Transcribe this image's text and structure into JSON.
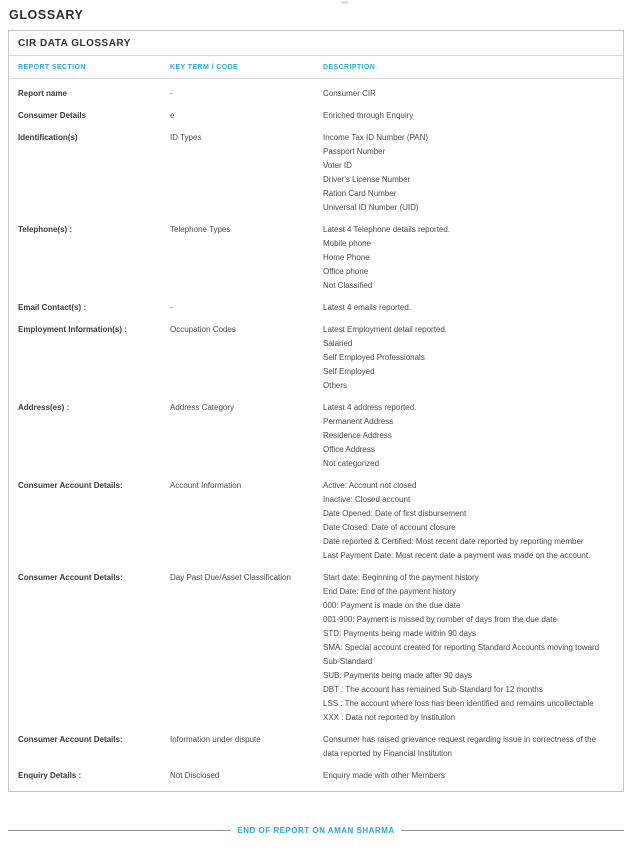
{
  "page": {
    "title": "GLOSSARY",
    "box_title": "CIR DATA GLOSSARY",
    "footer_text": "END OF REPORT ON AMAN SHARMA"
  },
  "colors": {
    "accent_cyan": "#29aad4",
    "heading_dark": "#2f2f34",
    "body_text": "#48484d",
    "border": "#c4c4c6"
  },
  "table": {
    "columns": [
      "REPORT SECTION",
      "KEY TERM / CODE",
      "DESCRIPTION"
    ],
    "rows": [
      {
        "section": "Report name",
        "key_term": "-",
        "description": [
          "Consumer CIR"
        ]
      },
      {
        "section": "Consumer Details",
        "key_term": "e",
        "description": [
          "Enriched through Enquiry"
        ]
      },
      {
        "section": "Identification(s)",
        "key_term": "ID Types",
        "description": [
          "Income Tax ID Number (PAN)",
          "Passport Number",
          "Voter ID",
          "Driver's License Number",
          "Ration Card Number",
          "Universal ID Number (UID)"
        ]
      },
      {
        "section": "Telephone(s) :",
        "key_term": "Telephone Types",
        "description": [
          "Latest 4 Telephone details reported.",
          "Mobile phone",
          "Home Phone",
          "Office phone",
          "Not Classified"
        ]
      },
      {
        "section": "Email Contact(s) :",
        "key_term": "-",
        "description": [
          "Latest 4 emails reported."
        ]
      },
      {
        "section": "Employment Information(s) :",
        "key_term": "Occupation Codes",
        "description": [
          "Latest Employment detail reported.",
          "Salaried",
          "Self Employed Professionals",
          "Self Employed",
          "Others"
        ]
      },
      {
        "section": "Address(es) :",
        "key_term": "Address Category",
        "description": [
          "Latest 4 address reported.",
          "Permanent Address",
          "Residence Address",
          "Office Address",
          "Not categorized"
        ]
      },
      {
        "section": "Consumer Account Details:",
        "key_term": "Account Information",
        "description": [
          "Active: Account not closed",
          "Inactive: Closed account",
          "Date Opened: Date of first disbursement",
          "Date Closed: Date of account closure",
          "Date reported & Certified: Most recent date reported by reporting member",
          "Last Payment Date: Most recent date a payment was made on the account."
        ]
      },
      {
        "section": "Consumer Account Details:",
        "key_term": "Day Past Due/Asset Classification",
        "description": [
          "Start date: Beginning of the payment history",
          "End Date: End of the payment history",
          "000: Payment is made on the due date",
          "001-900: Payment is missed by number of days from the due date",
          "STD: Payments being made within 90 days",
          "SMA: Special account created for reporting Standard Accounts moving toward Sub-Standard",
          "SUB: Payments being made after 90 days",
          "DBT : The account has remained Sub-Standard for 12 months",
          "LSS : The account where loss has been identified and remains uncollectable",
          "XXX : Data not reported by Institution"
        ]
      },
      {
        "section": "Consumer Account Details:",
        "key_term": "Information under dispute",
        "description": [
          "Consumer has raised grievance request regarding issue in correctness of the data reported by Financial Institution"
        ]
      },
      {
        "section": "Enquiry Details :",
        "key_term": "Not Disclosed",
        "description": [
          "Enquiry made with other Members"
        ]
      }
    ]
  }
}
